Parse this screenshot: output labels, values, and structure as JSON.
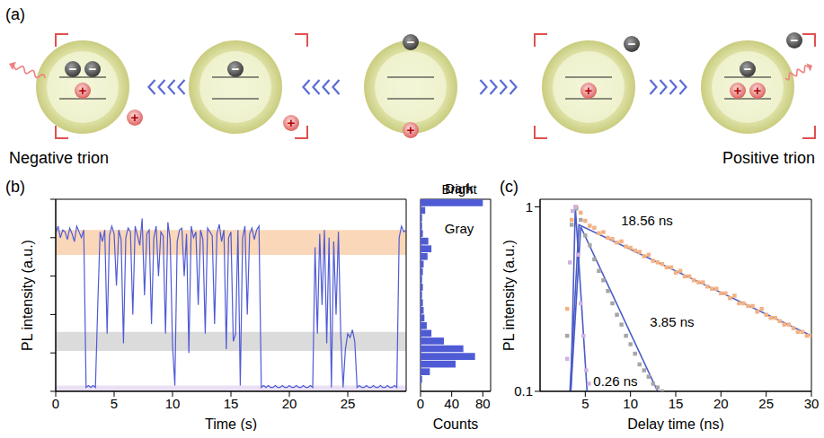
{
  "diagram": {
    "panel_label": "(a)",
    "electron_sign": "−",
    "hole_sign": "+",
    "left_label": "Negative trion",
    "right_label": "Positive trion"
  },
  "chart_data": [
    {
      "type": "line",
      "panel_label": "(b)",
      "x_label": "Time (s)",
      "y_label": "PL intensity (a.u.)",
      "color": "#4f5bd5",
      "xlim": [
        0,
        30
      ],
      "xticks": [
        0,
        5,
        10,
        15,
        20,
        25
      ],
      "ylim": [
        0,
        1
      ],
      "yticks": [
        0,
        0.2,
        0.4,
        0.6,
        0.8,
        1
      ],
      "tick_labels": "x",
      "x": [
        0,
        0.2,
        0.4,
        0.6,
        0.8,
        1,
        1.2,
        1.4,
        1.6,
        1.8,
        2,
        2.2,
        2.4,
        2.6,
        2.8,
        3,
        3.2,
        3.4,
        3.6,
        3.8,
        4,
        4.2,
        4.4,
        4.6,
        4.8,
        5,
        5.2,
        5.4,
        5.6,
        5.8,
        6,
        6.2,
        6.4,
        6.6,
        6.8,
        7,
        7.2,
        7.4,
        7.6,
        7.8,
        8,
        8.2,
        8.4,
        8.6,
        8.8,
        9,
        9.2,
        9.4,
        9.6,
        9.8,
        10,
        10.2,
        10.4,
        10.6,
        10.8,
        11,
        11.2,
        11.4,
        11.6,
        11.8,
        12,
        12.2,
        12.4,
        12.6,
        12.8,
        13,
        13.2,
        13.4,
        13.6,
        13.8,
        14,
        14.2,
        14.4,
        14.6,
        14.8,
        15,
        15.2,
        15.4,
        15.6,
        15.8,
        16,
        16.2,
        16.4,
        16.6,
        16.8,
        17,
        17.2,
        17.4,
        17.6,
        17.8,
        18,
        18.2,
        18.4,
        18.6,
        18.8,
        19,
        19.2,
        19.4,
        19.6,
        19.8,
        20,
        20.2,
        20.4,
        20.6,
        20.8,
        21,
        21.2,
        21.4,
        21.6,
        21.8,
        22,
        22.2,
        22.4,
        22.6,
        22.8,
        23,
        23.2,
        23.4,
        23.6,
        23.8,
        24,
        24.2,
        24.4,
        24.6,
        24.8,
        25,
        25.2,
        25.4,
        25.6,
        25.8,
        26,
        26.2,
        26.4,
        26.6,
        26.8,
        27,
        27.2,
        27.4,
        27.6,
        27.8,
        28,
        28.2,
        28.4,
        28.6,
        28.8,
        29,
        29.2,
        29.4,
        29.6,
        29.8,
        30
      ],
      "values": [
        0.82,
        0.86,
        0.8,
        0.84,
        0.83,
        0.79,
        0.85,
        0.82,
        0.78,
        0.86,
        0.83,
        0.8,
        0.84,
        0.02,
        0.03,
        0.02,
        0.03,
        0.02,
        0.45,
        0.83,
        0.78,
        0.84,
        0.3,
        0.81,
        0.86,
        0.82,
        0.55,
        0.84,
        0.79,
        0.25,
        0.8,
        0.85,
        0.83,
        0.4,
        0.86,
        0.81,
        0.76,
        0.9,
        0.5,
        0.82,
        0.84,
        0.35,
        0.8,
        0.86,
        0.6,
        0.83,
        0.81,
        0.3,
        0.88,
        0.79,
        0.24,
        0.03,
        0.78,
        0.84,
        0.85,
        0.6,
        0.82,
        0.2,
        0.86,
        0.8,
        0.83,
        0.45,
        0.84,
        0.79,
        0.3,
        0.85,
        0.83,
        0.81,
        0.35,
        0.82,
        0.87,
        0.78,
        0.84,
        0.22,
        0.8,
        0.83,
        0.26,
        0.3,
        0.84,
        0.03,
        0.8,
        0.86,
        0.4,
        0.82,
        0.85,
        0.79,
        0.84,
        0.86,
        0.02,
        0.03,
        0.02,
        0.03,
        0.02,
        0.02,
        0.03,
        0.02,
        0.02,
        0.03,
        0.02,
        0.02,
        0.03,
        0.02,
        0.02,
        0.03,
        0.02,
        0.02,
        0.03,
        0.02,
        0.02,
        0.03,
        0.02,
        0.75,
        0.3,
        0.82,
        0.45,
        0.84,
        0.25,
        0.8,
        0.02,
        0.78,
        0.4,
        0.83,
        0.3,
        0.02,
        0.22,
        0.3,
        0.28,
        0.32,
        0.26,
        0.02,
        0.03,
        0.02,
        0.02,
        0.03,
        0.02,
        0.02,
        0.03,
        0.02,
        0.02,
        0.03,
        0.02,
        0.02,
        0.03,
        0.02,
        0.02,
        0.03,
        0.02,
        0.8,
        0.86,
        0.83,
        0.84
      ]
    },
    {
      "type": "histogram",
      "orientation": "horizontal",
      "x_label": "Counts",
      "color": "#4f5bd5",
      "xlim": [
        0,
        90
      ],
      "xticks": [
        0,
        40,
        80
      ],
      "ylim": [
        0,
        1
      ],
      "tick_labels": "x",
      "bins": [
        0,
        0.04,
        0.08,
        0.12,
        0.16,
        0.2,
        0.24,
        0.28,
        0.32,
        0.36,
        0.4,
        0.44,
        0.48,
        0.52,
        0.56,
        0.6,
        0.64,
        0.68,
        0.72,
        0.76,
        0.8,
        0.84,
        0.88,
        0.92,
        0.96,
        1
      ],
      "counts": [
        80,
        6,
        2,
        2,
        3,
        10,
        14,
        9,
        4,
        3,
        2,
        3,
        2,
        3,
        4,
        5,
        8,
        14,
        30,
        55,
        70,
        45,
        12,
        2,
        0
      ],
      "bands": [
        {
          "name": "Bright",
          "range": [
            0.71,
            0.84
          ],
          "color": "#f8c9a0"
        },
        {
          "name": "Gray",
          "range": [
            0.21,
            0.31
          ],
          "color": "#cfcfcf"
        },
        {
          "name": "Dark",
          "range": [
            0,
            0.03
          ],
          "color": "#e3d6ef"
        }
      ]
    },
    {
      "type": "scatter",
      "panel_label": "(c)",
      "x_label": "Delay time (ns)",
      "y_label": "PL intensity (a.u.)",
      "log": "y",
      "xlim": [
        0,
        30
      ],
      "xticks": [
        5,
        10,
        15,
        20,
        25,
        30
      ],
      "ylim": [
        0.1,
        1.1
      ],
      "yticks": [
        0.1,
        1
      ],
      "series": [
        {
          "type": "scatter",
          "marker": "square",
          "color": "#f4b183",
          "x": [
            3,
            3.5,
            4,
            4.5,
            5,
            5.5,
            6,
            6.5,
            7,
            7.5,
            8,
            8.5,
            9,
            9.5,
            10,
            10.5,
            11,
            11.5,
            12,
            12.5,
            13,
            13.5,
            14,
            14.5,
            15,
            15.5,
            16,
            16.5,
            17,
            17.5,
            18,
            18.5,
            19,
            19.5,
            20,
            20.5,
            21,
            21.5,
            22,
            22.5,
            23,
            23.5,
            24,
            24.5,
            25,
            25.5,
            26,
            26.5,
            27,
            27.5,
            28,
            28.5,
            29,
            29.5,
            30
          ],
          "values": [
            0.28,
            0.85,
            1.0,
            0.93,
            0.84,
            0.79,
            0.77,
            0.72,
            0.73,
            0.68,
            0.67,
            0.64,
            0.65,
            0.61,
            0.6,
            0.58,
            0.57,
            0.54,
            0.55,
            0.51,
            0.5,
            0.49,
            0.47,
            0.47,
            0.44,
            0.45,
            0.42,
            0.42,
            0.4,
            0.39,
            0.39,
            0.37,
            0.36,
            0.36,
            0.34,
            0.34,
            0.32,
            0.33,
            0.3,
            0.3,
            0.29,
            0.29,
            0.27,
            0.28,
            0.26,
            0.25,
            0.25,
            0.24,
            0.23,
            0.23,
            0.22,
            0.21,
            0.21,
            0.2,
            0.2
          ]
        },
        {
          "type": "scatter",
          "marker": "square",
          "color": "#a6a6a6",
          "x": [
            3,
            3.5,
            4,
            4.5,
            5,
            5.5,
            6,
            6.5,
            7,
            7.5,
            8,
            8.5,
            9,
            9.5,
            10,
            10.5,
            11,
            11.5,
            12,
            12.5,
            13,
            13.5
          ],
          "values": [
            0.2,
            0.8,
            0.98,
            0.85,
            0.7,
            0.62,
            0.52,
            0.45,
            0.4,
            0.35,
            0.3,
            0.26,
            0.23,
            0.2,
            0.18,
            0.16,
            0.14,
            0.13,
            0.12,
            0.11,
            0.105,
            0.1
          ]
        },
        {
          "type": "scatter",
          "marker": "square",
          "color": "#cfb2e0",
          "x": [
            3,
            3.3,
            3.6,
            3.9,
            4.2,
            4.5,
            4.8,
            5.1,
            5.4
          ],
          "values": [
            0.15,
            0.5,
            0.95,
            1.0,
            0.55,
            0.3,
            0.2,
            0.13,
            0.11
          ]
        },
        {
          "type": "line",
          "color": "#4a5cc7",
          "annotation": "18.56 ns",
          "x": [
            3.3,
            4.3,
            30
          ],
          "values": [
            0.1,
            0.8,
            0.2
          ]
        },
        {
          "type": "line",
          "color": "#4a5cc7",
          "annotation": "3.85 ns",
          "x": [
            3.4,
            4.5,
            13
          ],
          "values": [
            0.1,
            0.78,
            0.1
          ]
        },
        {
          "type": "line",
          "color": "#4a5cc7",
          "annotation": "0.26 ns",
          "x": [
            3.4,
            3.9,
            5.2
          ],
          "values": [
            0.1,
            1.0,
            0.1
          ]
        }
      ]
    }
  ]
}
